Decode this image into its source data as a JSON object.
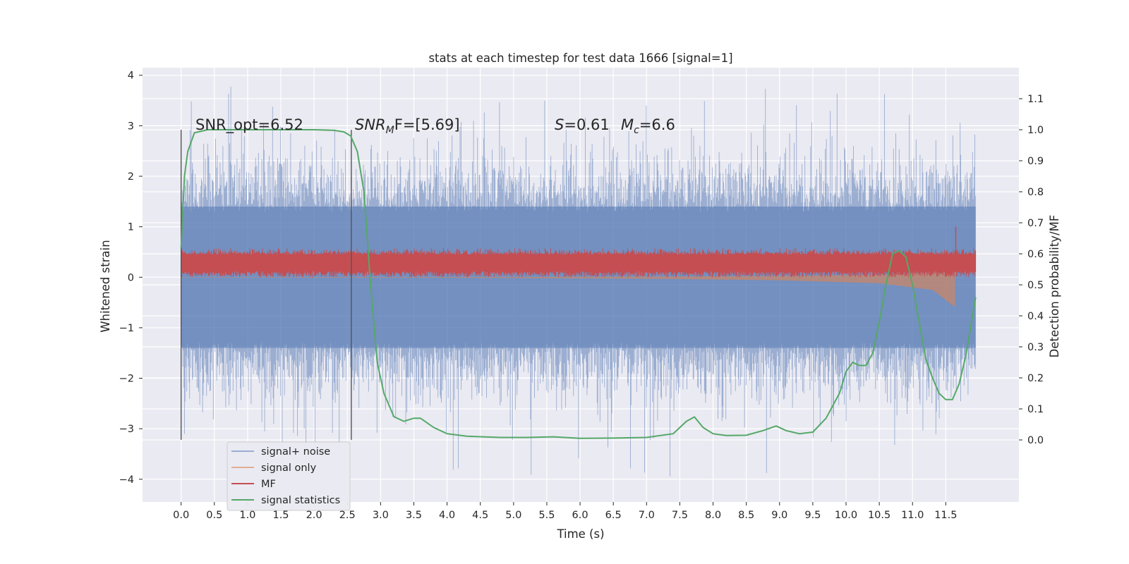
{
  "chart_data": {
    "type": "line",
    "title": "stats at each timestep for test data 1666 [signal=1]",
    "xlabel": "Time (s)",
    "ylabel_left": "Whitened strain",
    "ylabel_right": "Detection probability/MF",
    "xlim": [
      -0.58,
      12.6
    ],
    "ylim_left": [
      -4.45,
      4.15
    ],
    "ylim_right": [
      -0.2,
      1.2
    ],
    "x_ticks": [
      "0.0",
      "0.5",
      "1.0",
      "1.5",
      "2.0",
      "2.5",
      "3.0",
      "3.5",
      "4.0",
      "4.5",
      "5.0",
      "5.5",
      "6.0",
      "6.5",
      "7.0",
      "7.5",
      "8.0",
      "8.5",
      "9.0",
      "9.5",
      "10.0",
      "10.5",
      "11.0",
      "11.5"
    ],
    "y_ticks_left": [
      "−4",
      "−3",
      "−2",
      "−1",
      "0",
      "1",
      "2",
      "3",
      "4"
    ],
    "y_ticks_right": [
      "0.0",
      "0.1",
      "0.2",
      "0.3",
      "0.4",
      "0.5",
      "0.6",
      "0.7",
      "0.8",
      "0.9",
      "1.0",
      "1.1"
    ],
    "grid": true,
    "legend_position": "lower-left",
    "annotations": {
      "snr_opt": "SNR_opt=6.52",
      "snr_mf_main": "SNR",
      "snr_mf_sub": "M",
      "snr_mf_rest": "F=[5.69]",
      "s_var": "S",
      "s_rest": "=0.61",
      "mc_var": "M",
      "mc_sub": "c",
      "mc_rest": "=6.6"
    },
    "vertical_markers": [
      {
        "x": 0.0,
        "y_range": [
          -3.22,
          2.92
        ]
      },
      {
        "x": 2.56,
        "y_range": [
          -3.22,
          2.92
        ]
      }
    ],
    "series": [
      {
        "name": "signal+ noise",
        "axis": "left",
        "color": "#4c72b0",
        "alpha": 0.5,
        "envelope": {
          "x_range": [
            0.0,
            11.95
          ],
          "band_low": -1.4,
          "band_high": 1.4,
          "spike_min": -4.1,
          "spike_max": 3.8
        }
      },
      {
        "name": "signal only",
        "axis": "left",
        "color": "#dd8452",
        "alpha": 0.6,
        "chirp": {
          "x": [
            0.0,
            4.0,
            7.0,
            9.0,
            10.5,
            11.3,
            11.65
          ],
          "amplitude": [
            0.005,
            0.01,
            0.03,
            0.06,
            0.12,
            0.25,
            0.6
          ]
        }
      },
      {
        "name": "MF",
        "axis": "left",
        "color": "#c44e52",
        "envelope": {
          "x_range": [
            0.0,
            11.95
          ],
          "low": 0.0,
          "high": 0.45,
          "max": 1.0
        }
      },
      {
        "name": "signal statistics",
        "axis": "right",
        "color": "#55a868",
        "x": [
          0.0,
          0.05,
          0.1,
          0.2,
          0.4,
          0.8,
          1.5,
          2.0,
          2.3,
          2.45,
          2.55,
          2.65,
          2.75,
          2.85,
          2.95,
          3.05,
          3.2,
          3.35,
          3.5,
          3.6,
          3.8,
          4.0,
          4.3,
          4.8,
          5.2,
          5.6,
          6.0,
          6.5,
          7.0,
          7.4,
          7.6,
          7.72,
          7.85,
          8.0,
          8.2,
          8.5,
          8.75,
          8.95,
          9.1,
          9.3,
          9.5,
          9.7,
          9.9,
          10.0,
          10.1,
          10.2,
          10.3,
          10.4,
          10.5,
          10.6,
          10.7,
          10.8,
          10.9,
          11.0,
          11.1,
          11.2,
          11.3,
          11.4,
          11.5,
          11.6,
          11.7,
          11.8,
          11.95
        ],
        "y": [
          0.62,
          0.85,
          0.93,
          0.99,
          1.0,
          1.0,
          1.0,
          1.0,
          0.998,
          0.993,
          0.98,
          0.93,
          0.8,
          0.5,
          0.25,
          0.15,
          0.075,
          0.06,
          0.07,
          0.07,
          0.04,
          0.02,
          0.012,
          0.008,
          0.008,
          0.01,
          0.005,
          0.006,
          0.008,
          0.02,
          0.06,
          0.074,
          0.04,
          0.02,
          0.014,
          0.015,
          0.03,
          0.045,
          0.03,
          0.02,
          0.025,
          0.07,
          0.15,
          0.22,
          0.25,
          0.24,
          0.24,
          0.28,
          0.38,
          0.5,
          0.6,
          0.61,
          0.59,
          0.5,
          0.38,
          0.26,
          0.2,
          0.15,
          0.13,
          0.13,
          0.18,
          0.27,
          0.46
        ]
      }
    ]
  }
}
